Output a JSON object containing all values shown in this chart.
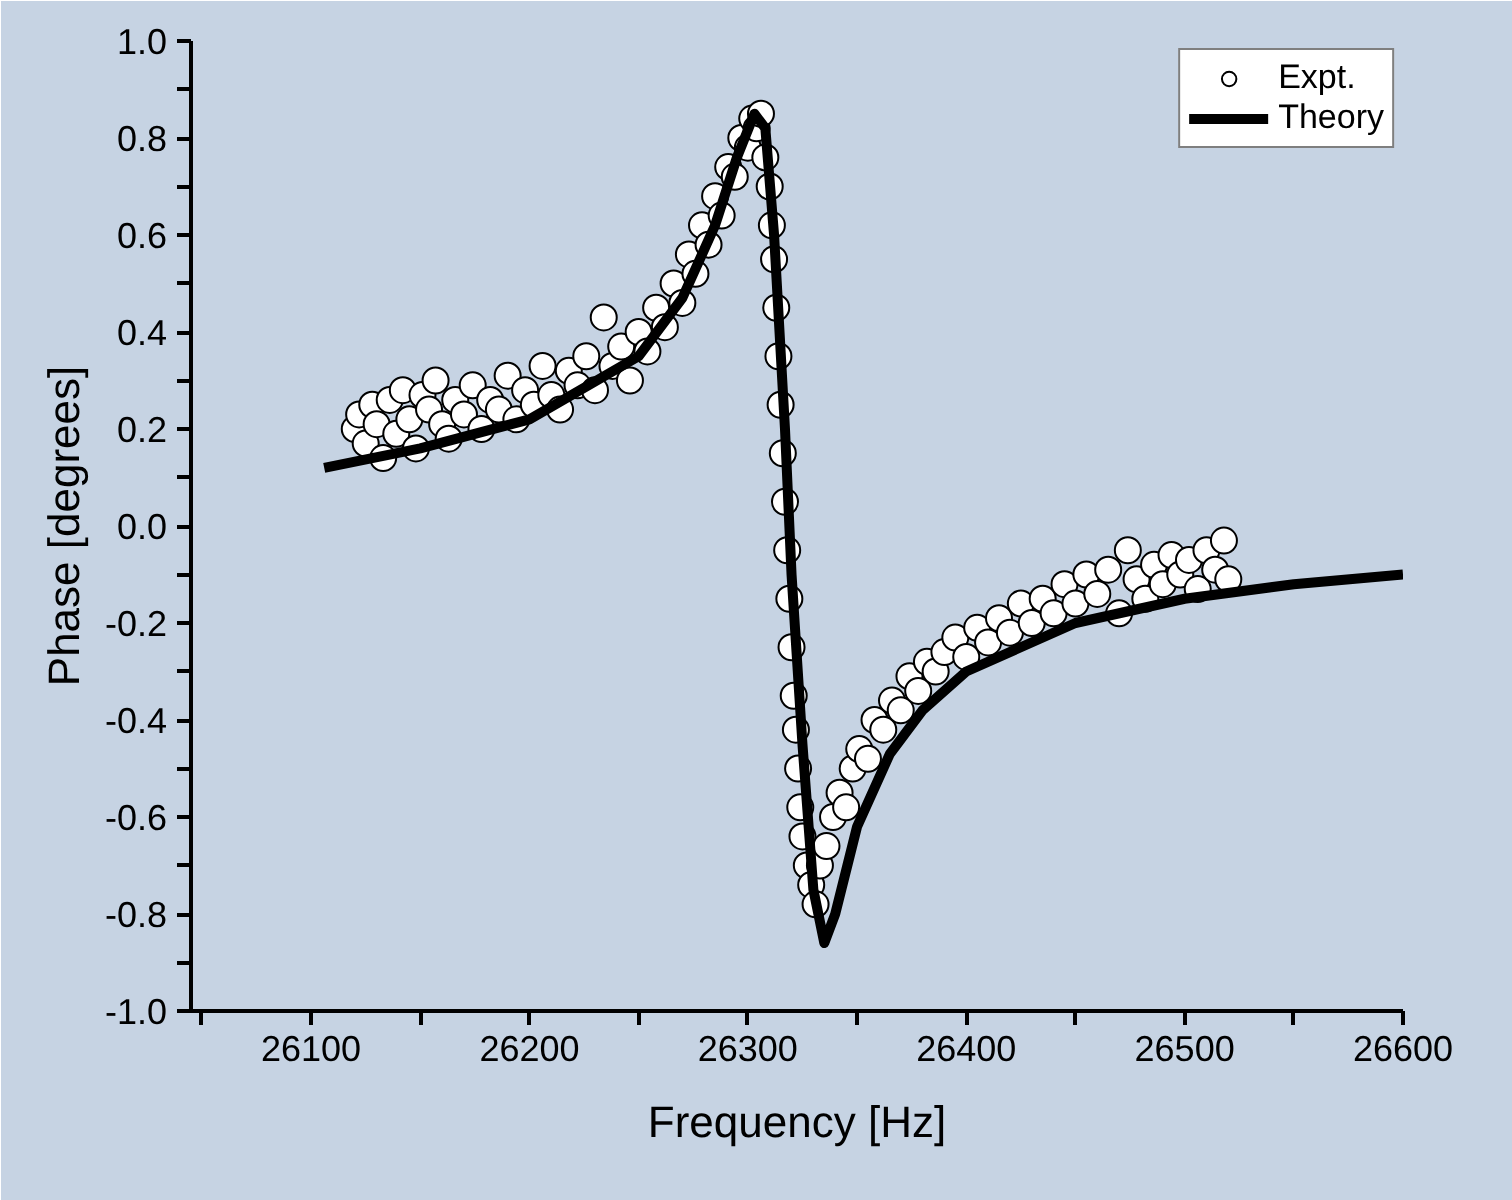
{
  "chart_data": {
    "type": "scatter",
    "xlabel": "Frequency [Hz]",
    "ylabel": "Phase [degrees]",
    "xlim": [
      26045,
      26600
    ],
    "ylim": [
      -1.0,
      1.0
    ],
    "xticks": [
      {
        "value": 26050,
        "label": null
      },
      26100,
      {
        "value": 26150,
        "label": null
      },
      26200,
      {
        "value": 26250,
        "label": null
      },
      26300,
      {
        "value": 26350,
        "label": null
      },
      26400,
      {
        "value": 26450,
        "label": null
      },
      26500,
      {
        "value": 26550,
        "label": null
      },
      26600
    ],
    "yticks": [
      {
        "value": -1.0,
        "label": "-1.0"
      },
      {
        "value": -0.9,
        "label": null
      },
      {
        "value": -0.8,
        "label": "-0.8"
      },
      {
        "value": -0.7,
        "label": null
      },
      {
        "value": -0.6,
        "label": "-0.6"
      },
      {
        "value": -0.5,
        "label": null
      },
      {
        "value": -0.4,
        "label": "-0.4"
      },
      {
        "value": -0.3,
        "label": null
      },
      {
        "value": -0.2,
        "label": "-0.2"
      },
      {
        "value": -0.1,
        "label": null
      },
      {
        "value": 0.0,
        "label": "0.0"
      },
      {
        "value": 0.1,
        "label": null
      },
      {
        "value": 0.2,
        "label": "0.2"
      },
      {
        "value": 0.3,
        "label": null
      },
      {
        "value": 0.4,
        "label": "0.4"
      },
      {
        "value": 0.5,
        "label": null
      },
      {
        "value": 0.6,
        "label": "0.6"
      },
      {
        "value": 0.7,
        "label": null
      },
      {
        "value": 0.8,
        "label": "0.8"
      },
      {
        "value": 0.9,
        "label": null
      },
      {
        "value": 1.0,
        "label": "1.0"
      }
    ],
    "grid": false,
    "legend": "top right",
    "series": [
      {
        "name": "Expt.",
        "marker": "circle",
        "color": "#ffffff",
        "x": [
          26120,
          26122,
          26125,
          26128,
          26130,
          26133,
          26136,
          26139,
          26142,
          26145,
          26148,
          26151,
          26154,
          26157,
          26160,
          26163,
          26166,
          26170,
          26174,
          26178,
          26182,
          26186,
          26190,
          26194,
          26198,
          26202,
          26206,
          26210,
          26214,
          26218,
          26222,
          26226,
          26230,
          26234,
          26238,
          26242,
          26246,
          26250,
          26254,
          26258,
          26262,
          26266,
          26270,
          26273,
          26276,
          26279,
          26282,
          26285,
          26288,
          26291,
          26294,
          26297,
          26300,
          26302,
          26304,
          26306,
          26308,
          26310,
          26311,
          26312,
          26313,
          26314,
          26315,
          26316,
          26317,
          26318,
          26319,
          26320,
          26321,
          26322,
          26323,
          26324,
          26325,
          26327,
          26329,
          26331,
          26333,
          26336,
          26339,
          26342,
          26345,
          26348,
          26351,
          26355,
          26358,
          26362,
          26366,
          26370,
          26374,
          26378,
          26382,
          26386,
          26390,
          26395,
          26400,
          26405,
          26410,
          26415,
          26420,
          26425,
          26430,
          26435,
          26440,
          26445,
          26450,
          26455,
          26460,
          26465,
          26470,
          26474,
          26478,
          26482,
          26486,
          26490,
          26494,
          26498,
          26502,
          26506,
          26510,
          26514,
          26518,
          26520
        ],
        "values": [
          0.2,
          0.23,
          0.17,
          0.25,
          0.21,
          0.14,
          0.26,
          0.19,
          0.28,
          0.22,
          0.16,
          0.27,
          0.24,
          0.3,
          0.21,
          0.18,
          0.26,
          0.23,
          0.29,
          0.2,
          0.26,
          0.24,
          0.31,
          0.22,
          0.28,
          0.25,
          0.33,
          0.27,
          0.24,
          0.32,
          0.29,
          0.35,
          0.28,
          0.43,
          0.33,
          0.37,
          0.3,
          0.4,
          0.36,
          0.45,
          0.41,
          0.5,
          0.46,
          0.56,
          0.52,
          0.62,
          0.58,
          0.68,
          0.64,
          0.74,
          0.72,
          0.8,
          0.78,
          0.84,
          0.82,
          0.85,
          0.76,
          0.7,
          0.62,
          0.55,
          0.45,
          0.35,
          0.25,
          0.15,
          0.05,
          -0.05,
          -0.15,
          -0.25,
          -0.35,
          -0.42,
          -0.5,
          -0.58,
          -0.64,
          -0.7,
          -0.74,
          -0.78,
          -0.7,
          -0.66,
          -0.6,
          -0.55,
          -0.58,
          -0.5,
          -0.46,
          -0.48,
          -0.4,
          -0.42,
          -0.36,
          -0.38,
          -0.31,
          -0.34,
          -0.28,
          -0.3,
          -0.26,
          -0.23,
          -0.27,
          -0.21,
          -0.24,
          -0.19,
          -0.22,
          -0.16,
          -0.2,
          -0.15,
          -0.18,
          -0.12,
          -0.16,
          -0.1,
          -0.14,
          -0.09,
          -0.18,
          -0.05,
          -0.11,
          -0.15,
          -0.08,
          -0.12,
          -0.06,
          -0.1,
          -0.07,
          -0.13,
          -0.05,
          -0.09,
          -0.03,
          -0.11
        ]
      },
      {
        "name": "Theory",
        "type": "line",
        "line_style": "solid",
        "color": "#000000",
        "x": [
          26106,
          26150,
          26200,
          26250,
          26270,
          26285,
          26295,
          26303,
          26308,
          26312,
          26317,
          26320,
          26325,
          26330,
          26335,
          26340,
          26350,
          26365,
          26380,
          26400,
          26450,
          26500,
          26550,
          26600
        ],
        "values": [
          0.12,
          0.16,
          0.22,
          0.35,
          0.47,
          0.62,
          0.76,
          0.85,
          0.82,
          0.6,
          0.2,
          -0.1,
          -0.45,
          -0.75,
          -0.86,
          -0.8,
          -0.62,
          -0.47,
          -0.38,
          -0.3,
          -0.2,
          -0.15,
          -0.12,
          -0.1
        ]
      }
    ]
  }
}
